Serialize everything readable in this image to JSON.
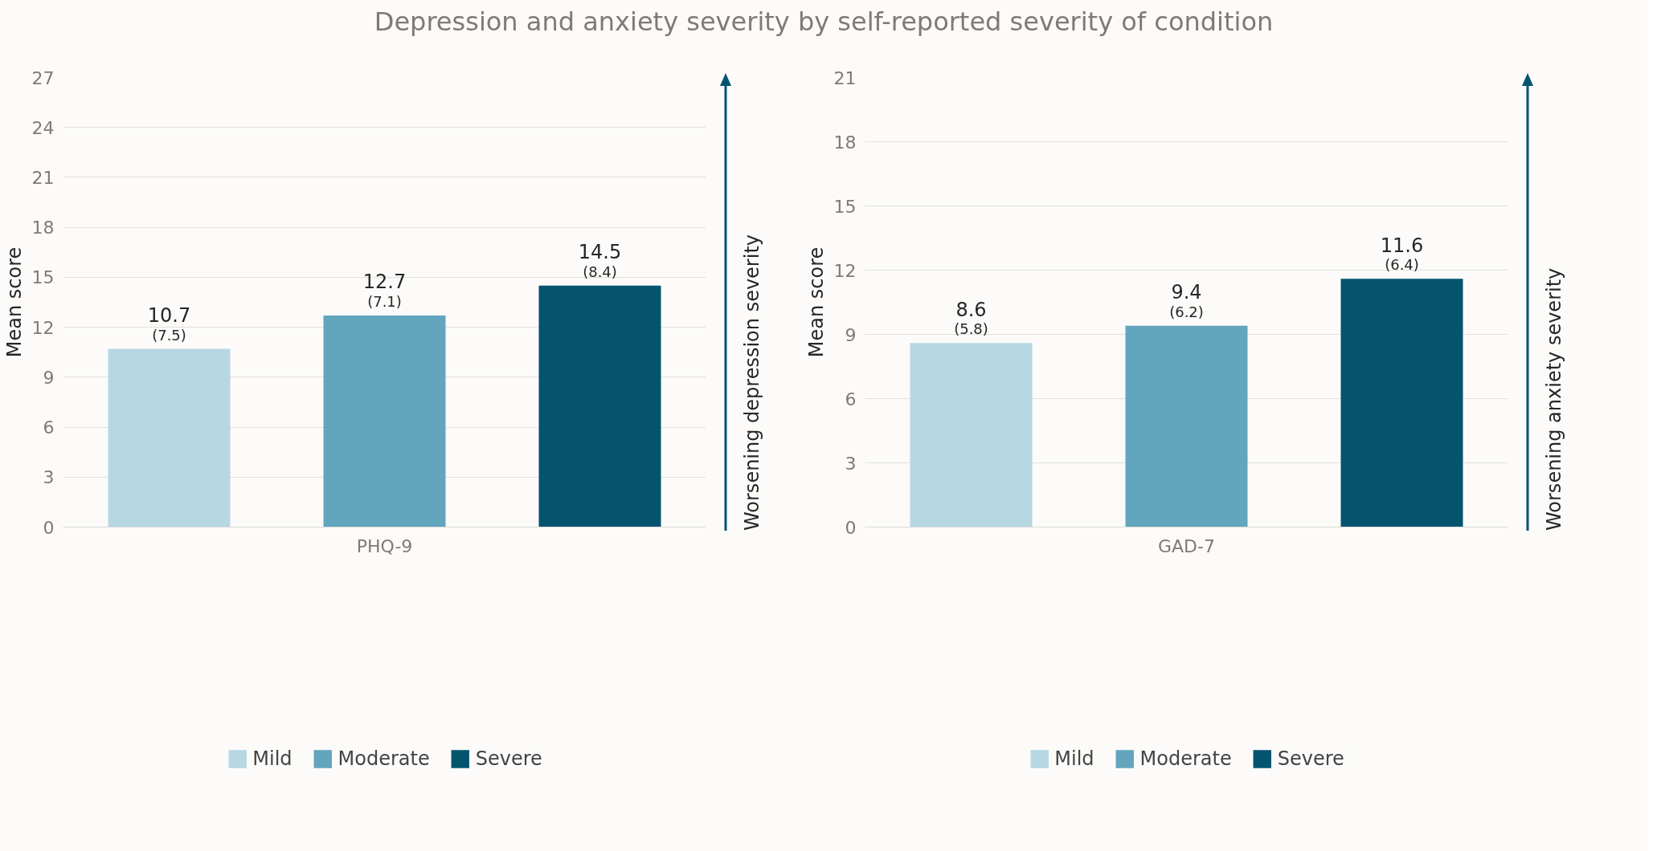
{
  "chart_data": [
    {
      "type": "bar",
      "title": "Depression and anxiety severity by self-reported severity of condition",
      "categories": [
        "PHQ-9"
      ],
      "ylabel": "Mean score",
      "ylim": [
        0,
        27
      ],
      "yticks": [
        0,
        3,
        6,
        9,
        12,
        15,
        18,
        21,
        24,
        27
      ],
      "grid": "y",
      "legend": "bottom",
      "annotations": [
        "Worsening depression severity"
      ],
      "series": [
        {
          "name": "Mild",
          "color": "#b7d7e3",
          "values": [
            10.7
          ],
          "value_labels": [
            "10.7\n(7.5)"
          ]
        },
        {
          "name": "Moderate",
          "color": "#62a5bd",
          "values": [
            12.7
          ],
          "value_labels": [
            "12.7\n(7.1)"
          ]
        },
        {
          "name": "Severe",
          "color": "#04546e",
          "values": [
            14.5
          ],
          "value_labels": [
            "14.5\n(8.4)"
          ]
        }
      ]
    },
    {
      "type": "bar",
      "categories": [
        "GAD-7"
      ],
      "ylabel": "Mean score",
      "ylim": [
        0,
        21
      ],
      "yticks": [
        0,
        3,
        6,
        9,
        12,
        15,
        18,
        21
      ],
      "grid": "y",
      "legend": "bottom",
      "annotations": [
        "Worsening anxiety severity"
      ],
      "series": [
        {
          "name": "Mild",
          "color": "#b7d7e3",
          "values": [
            8.6
          ],
          "value_labels": [
            "8.6\n(5.8)"
          ]
        },
        {
          "name": "Moderate",
          "color": "#62a5bd",
          "values": [
            9.4
          ],
          "value_labels": [
            "9.4\n(6.2)"
          ]
        },
        {
          "name": "Severe",
          "color": "#04546e",
          "values": [
            11.6
          ],
          "value_labels": [
            "11.6\n(6.4)"
          ]
        }
      ]
    }
  ]
}
